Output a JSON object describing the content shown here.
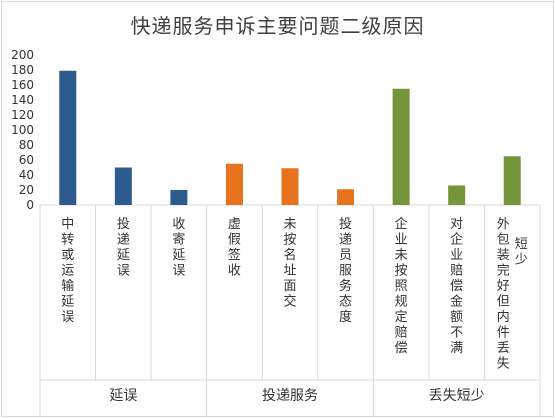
{
  "chart_data": {
    "type": "bar",
    "title": "快递服务申诉主要问题二级原因",
    "ylim": [
      0,
      200
    ],
    "y_ticks": [
      0,
      20,
      40,
      60,
      80,
      100,
      120,
      140,
      160,
      180,
      200
    ],
    "grid": false,
    "legend": "none",
    "categories": [
      "中转或运输延误",
      "投递延误",
      "收寄延误",
      "虚假签收",
      "未按名址面交",
      "投递员服务态度",
      "企业未按照规定赔偿",
      "对企业赔偿金额不满",
      "外包装完好但内件丢失短少"
    ],
    "groups": [
      {
        "label": "延误",
        "categories": [
          "中转或运输延误",
          "投递延误",
          "收寄延误"
        ],
        "values": [
          179,
          50,
          20
        ],
        "color": "#2e5b8e"
      },
      {
        "label": "投递服务",
        "categories": [
          "虚假签收",
          "未按名址面交",
          "投递员服务态度"
        ],
        "values": [
          55,
          49,
          21
        ],
        "color": "#e8731e"
      },
      {
        "label": "丢失短少",
        "categories": [
          "企业未按照规定赔偿",
          "对企业赔偿金额不满",
          "外包装完好但内件丢失短少"
        ],
        "values": [
          155,
          26,
          65
        ],
        "color": "#76953b"
      }
    ],
    "category_label_lines": [
      [
        "中转或运输延误"
      ],
      [
        "投递延误"
      ],
      [
        "收寄延误"
      ],
      [
        "虚假签收"
      ],
      [
        "未按名址面交"
      ],
      [
        "投递员服务态度"
      ],
      [
        "企业未按照规定赔偿"
      ],
      [
        "对企业赔偿金额不满"
      ],
      [
        "外包装完好但内件丢失",
        "短少"
      ]
    ]
  }
}
